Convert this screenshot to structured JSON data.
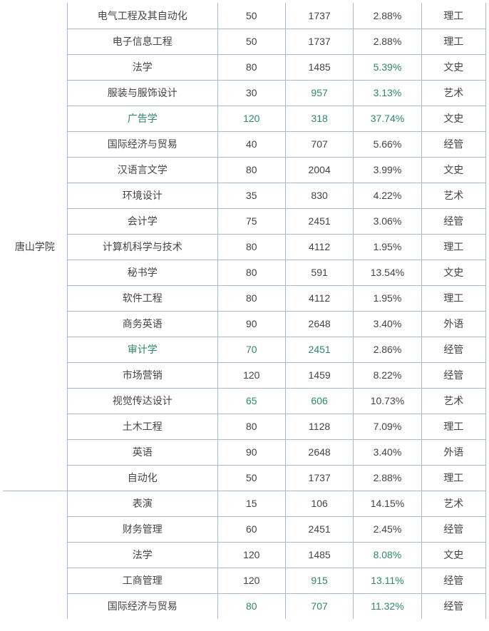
{
  "label": "唐山学院",
  "colors": {
    "border": "#a8b8c8",
    "text": "#444444",
    "highlight": "#2a8a6a",
    "background": "#ffffff"
  },
  "rows": [
    {
      "major": "电气工程及其自动化",
      "c1": "50",
      "c2": "1737",
      "c3": "2.88%",
      "cat": "理工",
      "h": []
    },
    {
      "major": "电子信息工程",
      "c1": "50",
      "c2": "1737",
      "c3": "2.88%",
      "cat": "理工",
      "h": []
    },
    {
      "major": "法学",
      "c1": "80",
      "c2": "1485",
      "c3": "5.39%",
      "cat": "文史",
      "h": [
        "c3"
      ]
    },
    {
      "major": "服装与服饰设计",
      "c1": "30",
      "c2": "957",
      "c3": "3.13%",
      "cat": "艺术",
      "h": [
        "c2",
        "c3"
      ]
    },
    {
      "major": "广告学",
      "c1": "120",
      "c2": "318",
      "c3": "37.74%",
      "cat": "文史",
      "h": [
        "major",
        "c1",
        "c2",
        "c3"
      ]
    },
    {
      "major": "国际经济与贸易",
      "c1": "40",
      "c2": "707",
      "c3": "5.66%",
      "cat": "经管",
      "h": []
    },
    {
      "major": "汉语言文学",
      "c1": "80",
      "c2": "2004",
      "c3": "3.99%",
      "cat": "文史",
      "h": []
    },
    {
      "major": "环境设计",
      "c1": "35",
      "c2": "830",
      "c3": "4.22%",
      "cat": "艺术",
      "h": []
    },
    {
      "major": "会计学",
      "c1": "75",
      "c2": "2451",
      "c3": "3.06%",
      "cat": "经管",
      "h": []
    },
    {
      "major": "计算机科学与技术",
      "c1": "80",
      "c2": "4112",
      "c3": "1.95%",
      "cat": "理工",
      "h": []
    },
    {
      "major": "秘书学",
      "c1": "80",
      "c2": "591",
      "c3": "13.54%",
      "cat": "文史",
      "h": []
    },
    {
      "major": "软件工程",
      "c1": "80",
      "c2": "4112",
      "c3": "1.95%",
      "cat": "理工",
      "h": []
    },
    {
      "major": "商务英语",
      "c1": "90",
      "c2": "2648",
      "c3": "3.40%",
      "cat": "外语",
      "h": []
    },
    {
      "major": "审计学",
      "c1": "70",
      "c2": "2451",
      "c3": "2.86%",
      "cat": "经管",
      "h": [
        "major",
        "c1",
        "c2"
      ]
    },
    {
      "major": "市场营销",
      "c1": "120",
      "c2": "1459",
      "c3": "8.22%",
      "cat": "经管",
      "h": []
    },
    {
      "major": "视觉传达设计",
      "c1": "65",
      "c2": "606",
      "c3": "10.73%",
      "cat": "艺术",
      "h": [
        "c1",
        "c2"
      ]
    },
    {
      "major": "土木工程",
      "c1": "80",
      "c2": "1128",
      "c3": "7.09%",
      "cat": "理工",
      "h": []
    },
    {
      "major": "英语",
      "c1": "90",
      "c2": "2648",
      "c3": "3.40%",
      "cat": "外语",
      "h": []
    },
    {
      "major": "自动化",
      "c1": "50",
      "c2": "1737",
      "c3": "2.88%",
      "cat": "理工",
      "h": []
    }
  ],
  "rows2": [
    {
      "major": "表演",
      "c1": "15",
      "c2": "106",
      "c3": "14.15%",
      "cat": "艺术",
      "h": []
    },
    {
      "major": "财务管理",
      "c1": "60",
      "c2": "2451",
      "c3": "2.45%",
      "cat": "经管",
      "h": []
    },
    {
      "major": "法学",
      "c1": "120",
      "c2": "1485",
      "c3": "8.08%",
      "cat": "文史",
      "h": [
        "c3"
      ]
    },
    {
      "major": "工商管理",
      "c1": "120",
      "c2": "915",
      "c3": "13.11%",
      "cat": "经管",
      "h": [
        "c2",
        "c3"
      ]
    },
    {
      "major": "国际经济与贸易",
      "c1": "80",
      "c2": "707",
      "c3": "11.32%",
      "cat": "经管",
      "h": [
        "c1",
        "c2",
        "c3"
      ]
    }
  ]
}
